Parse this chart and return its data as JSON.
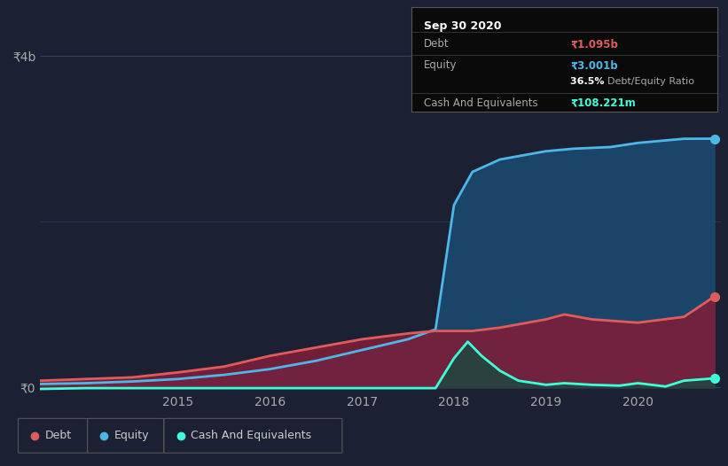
{
  "background_color": "#1c2033",
  "plot_bg_color": "#1c2033",
  "y4b_label": "₹4b",
  "y0_label": "₹0",
  "x_ticks": [
    "2015",
    "2016",
    "2017",
    "2018",
    "2019",
    "2020"
  ],
  "legend": [
    {
      "label": "Debt",
      "color": "#e05c5c"
    },
    {
      "label": "Equity",
      "color": "#4db8e8"
    },
    {
      "label": "Cash And Equivalents",
      "color": "#3fffd8"
    }
  ],
  "tooltip": {
    "date": "Sep 30 2020",
    "debt_label": "Debt",
    "debt_value": "₹1.095b",
    "debt_color": "#e05c5c",
    "equity_label": "Equity",
    "equity_value": "₹3.001b",
    "equity_color": "#4db8e8",
    "ratio_value": "36.5%",
    "ratio_label": "Debt/Equity Ratio",
    "cash_label": "Cash And Equivalents",
    "cash_value": "₹108.221m",
    "cash_color": "#3fffd8"
  },
  "ymax": 4.0,
  "debt": {
    "color": "#e05c5c",
    "fill_color": "#7b1f3a",
    "x": [
      2013.5,
      2014.0,
      2014.5,
      2015.0,
      2015.5,
      2016.0,
      2016.5,
      2017.0,
      2017.5,
      2017.8,
      2018.0,
      2018.2,
      2018.5,
      2019.0,
      2019.2,
      2019.5,
      2020.0,
      2020.5,
      2020.83
    ],
    "y": [
      0.08,
      0.1,
      0.12,
      0.18,
      0.25,
      0.38,
      0.48,
      0.58,
      0.65,
      0.68,
      0.68,
      0.68,
      0.72,
      0.82,
      0.88,
      0.82,
      0.78,
      0.85,
      1.095
    ]
  },
  "equity": {
    "color": "#4db8e8",
    "fill_color": "#1a4a6e",
    "x": [
      2013.5,
      2014.0,
      2014.5,
      2015.0,
      2015.5,
      2016.0,
      2016.5,
      2017.0,
      2017.5,
      2017.8,
      2018.0,
      2018.2,
      2018.5,
      2019.0,
      2019.3,
      2019.7,
      2020.0,
      2020.5,
      2020.83
    ],
    "y": [
      0.04,
      0.05,
      0.07,
      0.1,
      0.15,
      0.22,
      0.32,
      0.45,
      0.58,
      0.7,
      2.2,
      2.6,
      2.75,
      2.85,
      2.88,
      2.9,
      2.95,
      3.0,
      3.001
    ]
  },
  "cash": {
    "color": "#3fffd8",
    "fill_color": "#1a4a40",
    "x": [
      2013.5,
      2014.0,
      2015.0,
      2016.0,
      2017.0,
      2017.5,
      2017.8,
      2018.0,
      2018.15,
      2018.3,
      2018.5,
      2018.7,
      2019.0,
      2019.2,
      2019.5,
      2019.8,
      2020.0,
      2020.3,
      2020.5,
      2020.83
    ],
    "y": [
      -0.02,
      -0.01,
      -0.01,
      -0.01,
      -0.01,
      -0.01,
      -0.01,
      0.35,
      0.55,
      0.38,
      0.2,
      0.08,
      0.03,
      0.05,
      0.03,
      0.02,
      0.05,
      0.01,
      0.08,
      0.108
    ]
  }
}
